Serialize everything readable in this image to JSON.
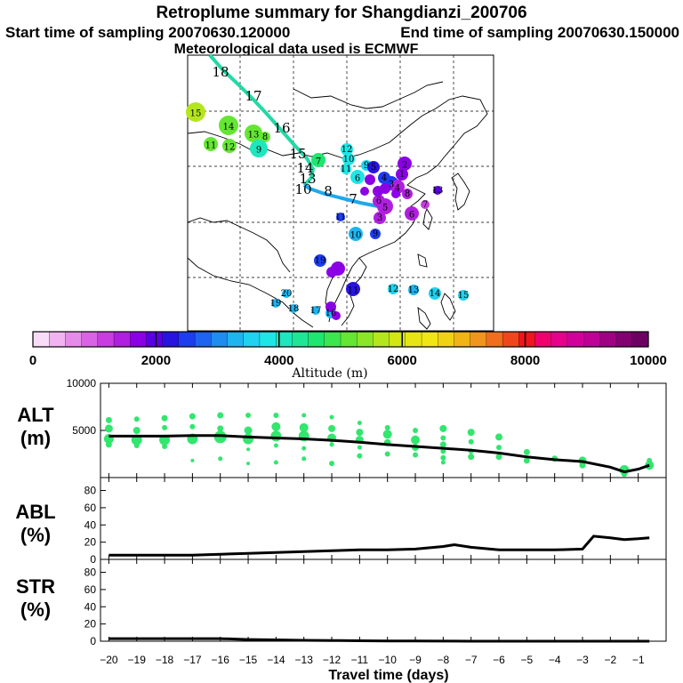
{
  "title": "Retroplume summary for Shangdianzi_200706",
  "start_sampling": "Start time of sampling 20070630.120000",
  "end_sampling": "End time of sampling 20070630.150000",
  "met_data": "Meteorological data used is ECMWF",
  "colors": {
    "trajectory_green": "#22d9a6",
    "trajectory_blue": "#1ea8ee",
    "dots": "#32e66e",
    "line": "#000000"
  },
  "colorbar": {
    "label": "Altitude (m)",
    "min": 0,
    "max": 10000,
    "tick_labels": [
      "0",
      "2000",
      "4000",
      "6000",
      "8000",
      "10000"
    ],
    "colors": [
      "#f7dcf7",
      "#f0b4f0",
      "#e48ce8",
      "#d864e4",
      "#c83ce0",
      "#b01ee0",
      "#8c00e6",
      "#5a00e6",
      "#2814e0",
      "#1e3cf0",
      "#1e64f0",
      "#1e8cf0",
      "#1eb4f0",
      "#1ed2f0",
      "#1ee6e6",
      "#1ee6be",
      "#1ee696",
      "#1ee66e",
      "#3ce650",
      "#64e632",
      "#8ce628",
      "#b4e61e",
      "#d2e614",
      "#e6e614",
      "#f0e614",
      "#f0d214",
      "#f0b414",
      "#f0961e",
      "#f06e1e",
      "#f0461e",
      "#f0141e",
      "#f0006e",
      "#e6008c",
      "#d2009b",
      "#be0096",
      "#a00082",
      "#820070",
      "#6e0064"
    ]
  },
  "map": {
    "trajectory": [
      {
        "label": "18",
        "alt": 4400
      },
      {
        "label": "17",
        "alt": 4400
      },
      {
        "label": "16",
        "alt": 4300
      },
      {
        "label": "15",
        "alt": 4300
      },
      {
        "label": "14",
        "alt": 4200
      },
      {
        "label": "13",
        "alt": 4100
      },
      {
        "label": "10",
        "alt": 3900
      },
      {
        "label": "8",
        "alt": 3700
      },
      {
        "label": "7",
        "alt": 3500
      }
    ],
    "clusters": [
      {
        "label": "15",
        "alt": 5700
      },
      {
        "label": "14",
        "alt": 5200
      },
      {
        "label": "13",
        "alt": 5000
      },
      {
        "label": "12",
        "alt": 5100
      },
      {
        "label": "11",
        "alt": 5200
      },
      {
        "label": "8",
        "alt": 5000
      },
      {
        "label": "9",
        "alt": 4100
      },
      {
        "label": "7",
        "alt": 4500
      },
      {
        "label": "12",
        "alt": 3900
      },
      {
        "label": "10",
        "alt": 3800
      },
      {
        "label": "9",
        "alt": 3600
      },
      {
        "label": "11",
        "alt": 3800
      },
      {
        "label": "6",
        "alt": 3900
      },
      {
        "label": "5",
        "alt": 2200
      },
      {
        "label": "4",
        "alt": 2500
      },
      {
        "label": "3",
        "alt": 2600
      },
      {
        "label": "2",
        "alt": 1700
      },
      {
        "label": "1",
        "alt": 1600
      },
      {
        "label": "13",
        "alt": 2100
      },
      {
        "label": "6",
        "alt": 1500
      },
      {
        "label": "5",
        "alt": 1400
      },
      {
        "label": "4",
        "alt": 1500
      },
      {
        "label": "8",
        "alt": 1400
      },
      {
        "label": "6",
        "alt": 1500
      },
      {
        "label": "7",
        "alt": 1300
      },
      {
        "label": "3",
        "alt": 1500
      },
      {
        "label": "10",
        "alt": 3200
      },
      {
        "label": "9",
        "alt": 2600
      },
      {
        "label": "11",
        "alt": 2400
      },
      {
        "label": "12",
        "alt": 3600
      },
      {
        "label": "13",
        "alt": 3400
      },
      {
        "label": "14",
        "alt": 3500
      },
      {
        "label": "15",
        "alt": 3500
      },
      {
        "label": "20",
        "alt": 3300
      },
      {
        "label": "19",
        "alt": 3300
      },
      {
        "label": "18",
        "alt": 3300
      },
      {
        "label": "17",
        "alt": 3300
      },
      {
        "label": "16",
        "alt": 3300
      },
      {
        "label": "19",
        "alt": 2500
      },
      {
        "label": "11",
        "alt": 2300
      }
    ]
  },
  "chart_data": [
    {
      "type": "scatter",
      "panel": "ALT",
      "ylabel_line1": "ALT",
      "ylabel_line2": "(m)",
      "ylim": [
        0,
        10000
      ],
      "y_ticks": [
        "5000",
        "10000"
      ],
      "line_x": [
        -20,
        -19,
        -18,
        -17,
        -16,
        -15,
        -14,
        -13,
        -12,
        -11,
        -10,
        -9,
        -8,
        -7,
        -6,
        -5,
        -4,
        -3,
        -2,
        -1.5,
        -1,
        -0.6
      ],
      "line_y": [
        4400,
        4400,
        4400,
        4450,
        4450,
        4300,
        4200,
        4100,
        3950,
        3750,
        3500,
        3300,
        3100,
        2900,
        2600,
        2200,
        1900,
        1700,
        1100,
        600,
        900,
        1300
      ],
      "dots": [
        {
          "x": -20,
          "y": 6100,
          "r": 3.5
        },
        {
          "x": -20,
          "y": 5200,
          "r": 4.5
        },
        {
          "x": -20,
          "y": 4100,
          "r": 5.5
        },
        {
          "x": -20,
          "y": 3500,
          "r": 3.5
        },
        {
          "x": -19,
          "y": 6200,
          "r": 3
        },
        {
          "x": -19,
          "y": 5000,
          "r": 4
        },
        {
          "x": -19,
          "y": 4000,
          "r": 6
        },
        {
          "x": -19,
          "y": 3400,
          "r": 3
        },
        {
          "x": -18,
          "y": 6300,
          "r": 3.5
        },
        {
          "x": -18,
          "y": 5300,
          "r": 3
        },
        {
          "x": -18,
          "y": 4000,
          "r": 6
        },
        {
          "x": -18,
          "y": 3300,
          "r": 3
        },
        {
          "x": -17,
          "y": 6500,
          "r": 3.5
        },
        {
          "x": -17,
          "y": 5400,
          "r": 3
        },
        {
          "x": -17,
          "y": 4100,
          "r": 6
        },
        {
          "x": -17,
          "y": 1800,
          "r": 2
        },
        {
          "x": -16,
          "y": 6600,
          "r": 3.5
        },
        {
          "x": -16,
          "y": 5200,
          "r": 3.5
        },
        {
          "x": -16,
          "y": 4300,
          "r": 7
        },
        {
          "x": -16,
          "y": 2000,
          "r": 2.5
        },
        {
          "x": -15,
          "y": 6600,
          "r": 3
        },
        {
          "x": -15,
          "y": 5000,
          "r": 4.5
        },
        {
          "x": -15,
          "y": 4100,
          "r": 6
        },
        {
          "x": -15,
          "y": 3000,
          "r": 2
        },
        {
          "x": -15,
          "y": 1500,
          "r": 2
        },
        {
          "x": -14,
          "y": 6600,
          "r": 3
        },
        {
          "x": -14,
          "y": 5400,
          "r": 5
        },
        {
          "x": -14,
          "y": 4400,
          "r": 6
        },
        {
          "x": -14,
          "y": 3400,
          "r": 2.5
        },
        {
          "x": -14,
          "y": 1600,
          "r": 2.5
        },
        {
          "x": -13,
          "y": 6600,
          "r": 2.5
        },
        {
          "x": -13,
          "y": 5300,
          "r": 5
        },
        {
          "x": -13,
          "y": 4400,
          "r": 6
        },
        {
          "x": -13,
          "y": 3100,
          "r": 2.5
        },
        {
          "x": -13,
          "y": 2000,
          "r": 2.5
        },
        {
          "x": -12,
          "y": 6400,
          "r": 2.5
        },
        {
          "x": -12,
          "y": 5200,
          "r": 4
        },
        {
          "x": -12,
          "y": 4200,
          "r": 5
        },
        {
          "x": -12,
          "y": 3500,
          "r": 2.5
        },
        {
          "x": -12,
          "y": 1500,
          "r": 3
        },
        {
          "x": -11,
          "y": 5800,
          "r": 2.5
        },
        {
          "x": -11,
          "y": 4800,
          "r": 4
        },
        {
          "x": -11,
          "y": 4000,
          "r": 4.5
        },
        {
          "x": -11,
          "y": 3200,
          "r": 2.5
        },
        {
          "x": -11,
          "y": 2300,
          "r": 3
        },
        {
          "x": -10,
          "y": 5300,
          "r": 3
        },
        {
          "x": -10,
          "y": 4600,
          "r": 5
        },
        {
          "x": -10,
          "y": 3700,
          "r": 4
        },
        {
          "x": -10,
          "y": 2500,
          "r": 3
        },
        {
          "x": -9,
          "y": 5000,
          "r": 3
        },
        {
          "x": -9,
          "y": 4000,
          "r": 5
        },
        {
          "x": -9,
          "y": 3200,
          "r": 4
        },
        {
          "x": -9,
          "y": 2400,
          "r": 3
        },
        {
          "x": -8,
          "y": 5200,
          "r": 4
        },
        {
          "x": -8,
          "y": 4200,
          "r": 3
        },
        {
          "x": -8,
          "y": 3500,
          "r": 3.5
        },
        {
          "x": -8,
          "y": 2800,
          "r": 3
        },
        {
          "x": -8,
          "y": 2100,
          "r": 3
        },
        {
          "x": -8,
          "y": 1600,
          "r": 2.5
        },
        {
          "x": -7,
          "y": 4800,
          "r": 4
        },
        {
          "x": -7,
          "y": 3800,
          "r": 3
        },
        {
          "x": -7,
          "y": 2800,
          "r": 3
        },
        {
          "x": -7,
          "y": 2200,
          "r": 3.5
        },
        {
          "x": -6,
          "y": 4300,
          "r": 4
        },
        {
          "x": -6,
          "y": 3200,
          "r": 3
        },
        {
          "x": -6,
          "y": 2200,
          "r": 3.5
        },
        {
          "x": -5,
          "y": 2700,
          "r": 3.5
        },
        {
          "x": -5,
          "y": 1800,
          "r": 3.5
        },
        {
          "x": -4,
          "y": 2000,
          "r": 3.5
        },
        {
          "x": -3,
          "y": 1800,
          "r": 4.5
        },
        {
          "x": -3,
          "y": 1300,
          "r": 3.5
        },
        {
          "x": -1.5,
          "y": 800,
          "r": 5.5
        },
        {
          "x": -1.5,
          "y": 400,
          "r": 3.5
        },
        {
          "x": -0.6,
          "y": 1800,
          "r": 3
        },
        {
          "x": -0.6,
          "y": 1300,
          "r": 5
        }
      ]
    },
    {
      "type": "line",
      "panel": "ABL",
      "ylabel_line1": "ABL",
      "ylabel_line2": "(%)",
      "ylim": [
        0,
        95
      ],
      "y_ticks": [
        "0",
        "20",
        "40",
        "60",
        "80"
      ],
      "x": [
        -20,
        -19,
        -18,
        -17,
        -16,
        -15,
        -14,
        -13,
        -12,
        -11,
        -10,
        -9,
        -8,
        -7.6,
        -7,
        -6,
        -5,
        -4,
        -3,
        -2.6,
        -2,
        -1.5,
        -1,
        -0.6
      ],
      "y": [
        5,
        5,
        5,
        5,
        6,
        7,
        8,
        9,
        10,
        11,
        11,
        12,
        15,
        17,
        14,
        11,
        11,
        11,
        12,
        27,
        25,
        23,
        24,
        25
      ]
    },
    {
      "type": "line",
      "panel": "STR",
      "ylabel_line1": "STR",
      "ylabel_line2": "(%)",
      "ylim": [
        0,
        95
      ],
      "y_ticks": [
        "0",
        "20",
        "40",
        "60",
        "80"
      ],
      "x": [
        -20,
        -19,
        -18,
        -17,
        -16,
        -15,
        -14,
        -13,
        -12,
        -11,
        -10,
        -9,
        -8,
        -7,
        -6,
        -5,
        -4,
        -3,
        -2,
        -1,
        -0.6
      ],
      "y": [
        3,
        3,
        3,
        3,
        3,
        2,
        1.5,
        1,
        0.8,
        0.5,
        0.3,
        0.2,
        0.1,
        0,
        0,
        0,
        0,
        0,
        0,
        0,
        0
      ]
    }
  ],
  "x_axis": {
    "label": "Travel time (days)",
    "min": -20.3,
    "max": 0,
    "tick_labels": [
      "−20",
      "−19",
      "−18",
      "−17",
      "−16",
      "−15",
      "−14",
      "−13",
      "−12",
      "−11",
      "−10",
      "−9",
      "−8",
      "−7",
      "−6",
      "−5",
      "−4",
      "−3",
      "−2",
      "−1"
    ]
  }
}
